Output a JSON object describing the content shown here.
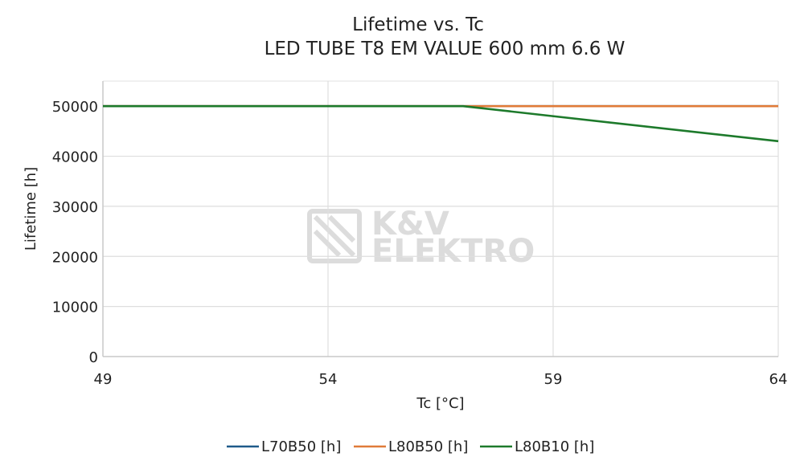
{
  "chart_data": {
    "type": "line",
    "title": "Lifetime vs. Tc",
    "subtitle": "LED TUBE T8 EM VALUE 600 mm 6.6 W",
    "xlabel": "Tc [°C]",
    "ylabel": "Lifetime [h]",
    "xlim": [
      49,
      64
    ],
    "ylim": [
      0,
      55000
    ],
    "xticks": [
      49,
      54,
      59,
      64
    ],
    "yticks": [
      0,
      10000,
      20000,
      30000,
      40000,
      50000
    ],
    "grid": true,
    "legend_position": "bottom",
    "series": [
      {
        "name": "L70B50 [h]",
        "color": "#1f5b8a",
        "points": [
          [
            49,
            50000
          ],
          [
            64,
            50000
          ]
        ]
      },
      {
        "name": "L80B50 [h]",
        "color": "#e07b39",
        "points": [
          [
            49,
            50000
          ],
          [
            64,
            50000
          ]
        ]
      },
      {
        "name": "L80B10 [h]",
        "color": "#1d7a2b",
        "points": [
          [
            49,
            50000
          ],
          [
            57,
            50000
          ],
          [
            64,
            43000
          ]
        ]
      }
    ]
  },
  "watermark": {
    "line1": "K&V",
    "line2": "ELEKTRO"
  }
}
